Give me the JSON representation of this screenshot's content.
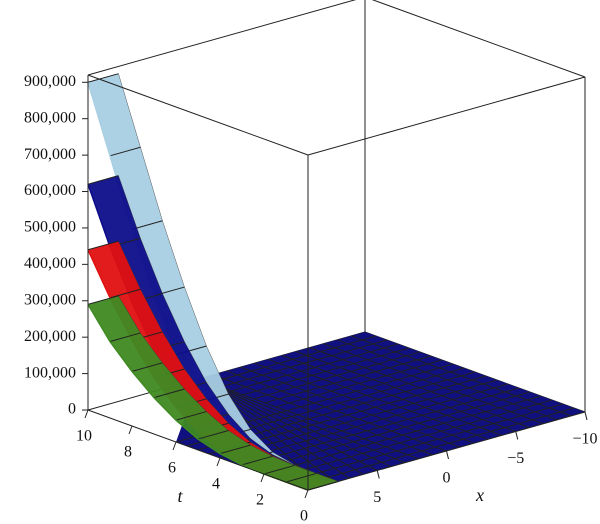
{
  "chart_data": {
    "type": "surface3d",
    "t_axis_label": "t",
    "x_axis_label": "x",
    "tlim": [
      0,
      10
    ],
    "xlim": [
      -10,
      10
    ],
    "zlim": [
      0,
      920000
    ],
    "tticks": [
      10,
      8,
      6,
      4,
      2,
      0
    ],
    "xticks": [
      5,
      0,
      {
        "value": -5,
        "label": "−5"
      },
      {
        "value": -10,
        "label": "−10"
      }
    ],
    "zticks": [
      0,
      {
        "value": 100000,
        "label": "100,000"
      },
      {
        "value": 200000,
        "label": "200,000"
      },
      {
        "value": 300000,
        "label": "300,000"
      },
      {
        "value": 400000,
        "label": "400,000"
      },
      {
        "value": 500000,
        "label": "500,000"
      },
      {
        "value": 600000,
        "label": "600,000"
      },
      {
        "value": 700000,
        "label": "700,000"
      },
      {
        "value": 800000,
        "label": "800,000"
      },
      {
        "value": 900000,
        "label": "900,000"
      }
    ],
    "t": [
      10,
      9,
      8,
      7,
      6,
      5,
      4,
      3,
      2,
      1,
      0
    ],
    "series": [
      {
        "color": "#a9cfe3",
        "values": [
          900000,
          720000,
          540000,
          380000,
          240000,
          130000,
          55000,
          15000,
          2000,
          0,
          0
        ]
      },
      {
        "color": "#0d0d8a",
        "values": [
          620000,
          470000,
          340000,
          230000,
          140000,
          75000,
          30000,
          8000,
          1000,
          0,
          0
        ]
      },
      {
        "color": "#e01010",
        "values": [
          440000,
          330000,
          235000,
          155000,
          95000,
          50000,
          20000,
          5000,
          500,
          0,
          0
        ]
      },
      {
        "color": "#3f8a22",
        "values": [
          290000,
          210000,
          150000,
          100000,
          60000,
          30000,
          12000,
          3000,
          0,
          0,
          0
        ]
      }
    ]
  }
}
